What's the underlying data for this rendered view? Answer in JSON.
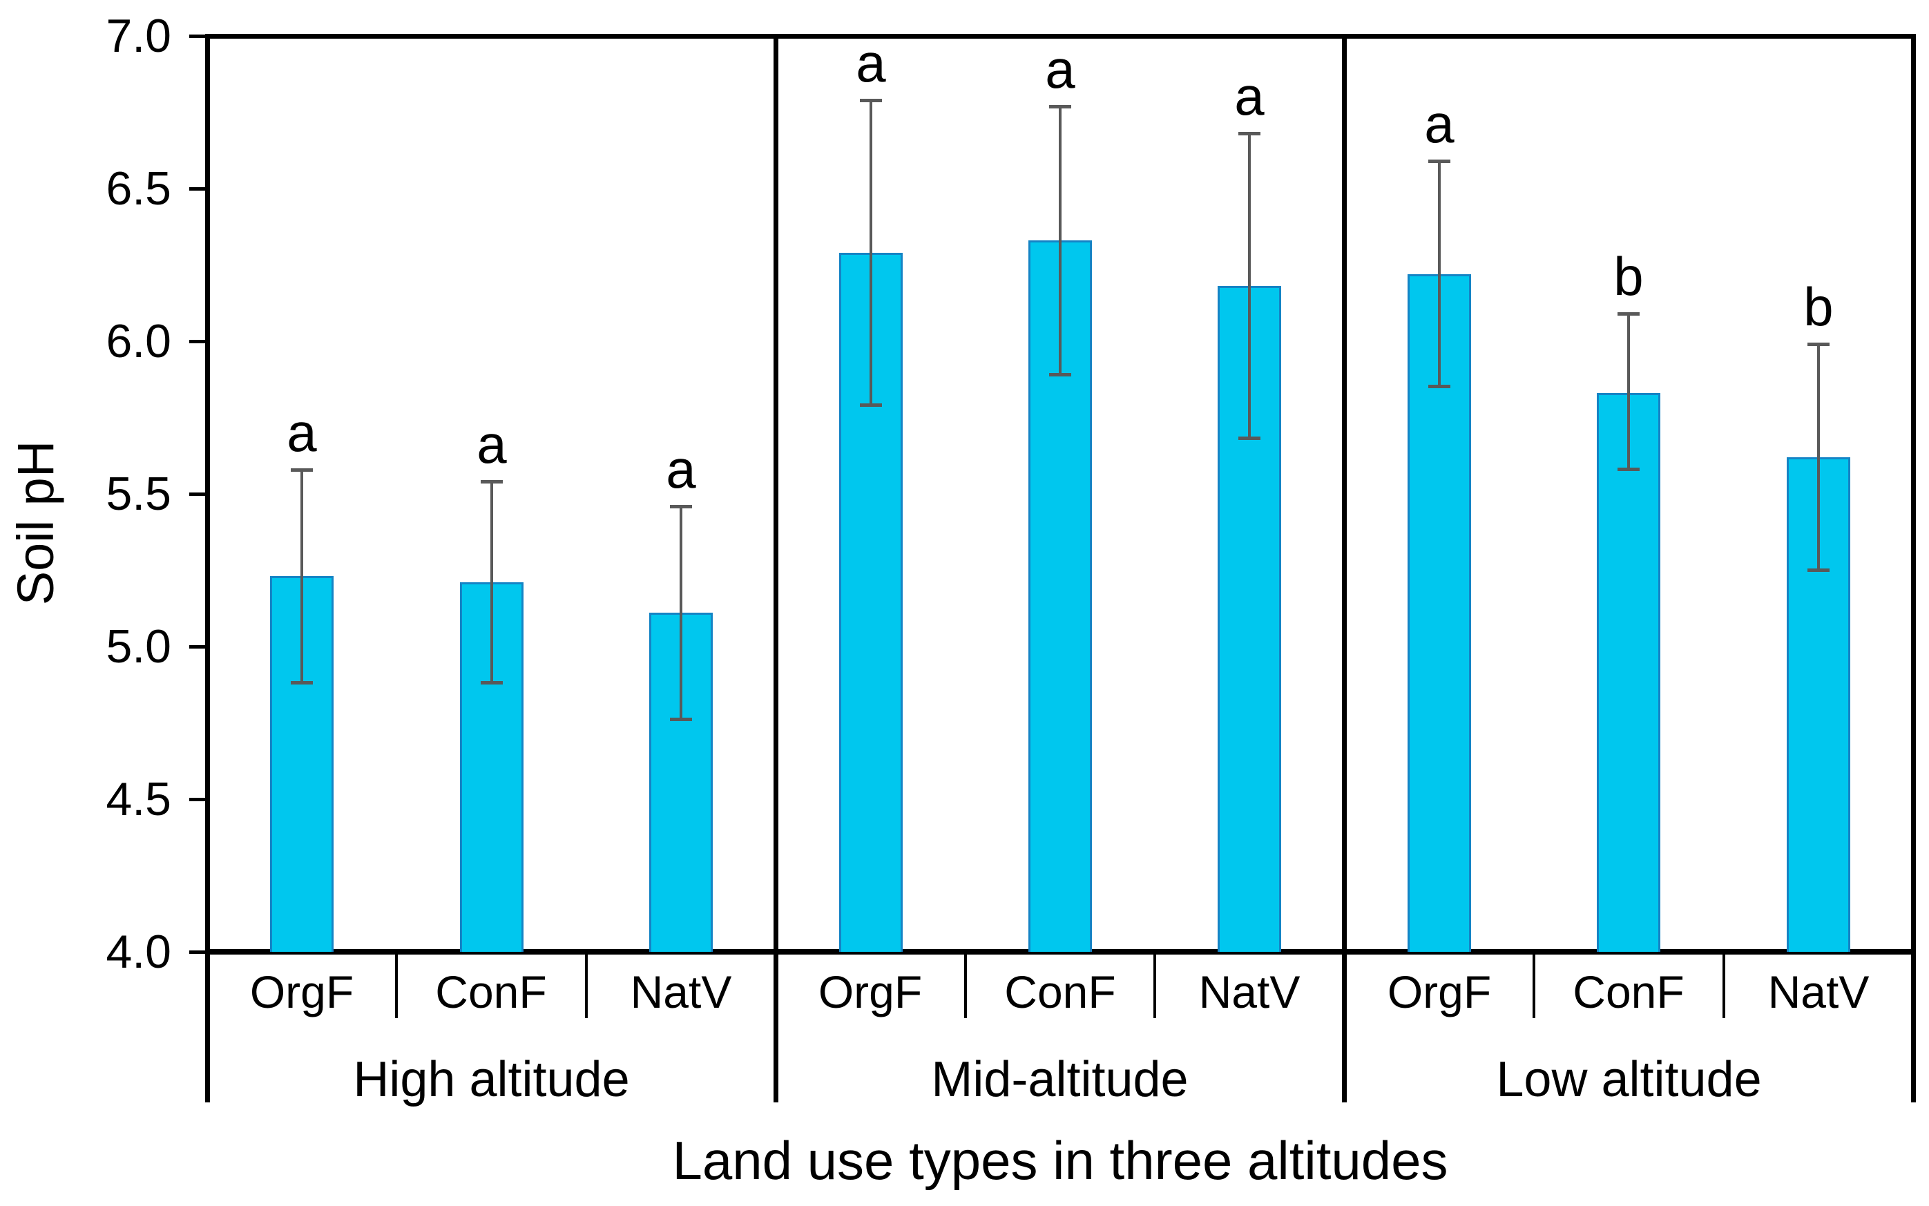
{
  "figure": {
    "background_color": "#ffffff",
    "axis_color": "#000000",
    "text_color": "#000000"
  },
  "chart_data": {
    "type": "bar",
    "title": "",
    "xlabel": "Land use types in three altitudes",
    "ylabel": "Soil pH",
    "ylim": [
      4.0,
      7.0
    ],
    "yticks": [
      "4.0",
      "4.5",
      "5.0",
      "5.5",
      "6.0",
      "6.5",
      "7.0"
    ],
    "grid": false,
    "legend": "none",
    "bar_fill_color": "#00c7ee",
    "bar_border_color": "#1584c5",
    "error_bar_color": "#595959",
    "groups": [
      {
        "label": "High altitude",
        "categories": [
          "OrgF",
          "ConF",
          "NatV"
        ],
        "values": [
          5.23,
          5.21,
          5.11
        ],
        "error_low": [
          4.88,
          4.88,
          4.76
        ],
        "error_high": [
          5.58,
          5.54,
          5.46
        ],
        "sig_letters": [
          "a",
          "a",
          "a"
        ]
      },
      {
        "label": "Mid-altitude",
        "categories": [
          "OrgF",
          "ConF",
          "NatV"
        ],
        "values": [
          6.29,
          6.33,
          6.18
        ],
        "error_low": [
          5.79,
          5.89,
          5.68
        ],
        "error_high": [
          6.79,
          6.77,
          6.68
        ],
        "sig_letters": [
          "a",
          "a",
          "a"
        ]
      },
      {
        "label": "Low altitude",
        "categories": [
          "OrgF",
          "ConF",
          "NatV"
        ],
        "values": [
          6.22,
          5.83,
          5.62
        ],
        "error_low": [
          5.85,
          5.58,
          5.25
        ],
        "error_high": [
          6.59,
          6.09,
          5.99
        ],
        "sig_letters": [
          "a",
          "b",
          "b"
        ]
      }
    ]
  }
}
